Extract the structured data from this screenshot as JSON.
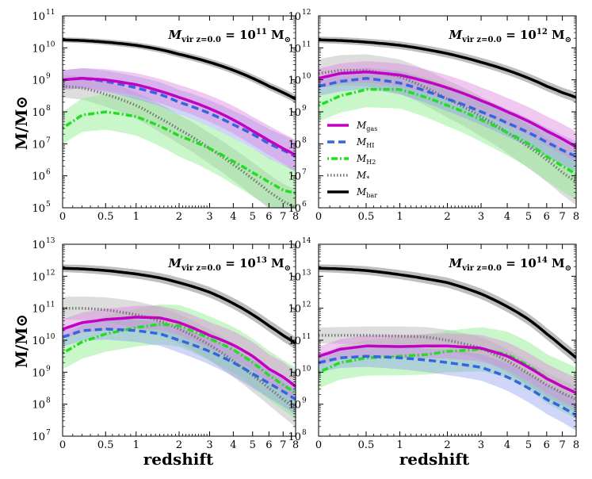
{
  "chart_data": [
    {
      "type": "line",
      "title": "M_vir z=0.0 = 10^11 M_sun",
      "title_parts": {
        "sym": "M",
        "sub": "vir z=0.0",
        "mid": " = 10",
        "exp": "11",
        "unit": " M",
        "unit_sub": "⊙"
      },
      "xlabel": "",
      "ylabel": "M/M⊙",
      "yexp_range": [
        5,
        11
      ],
      "x": [
        0,
        0.2,
        0.5,
        1,
        1.5,
        2,
        3,
        4,
        5,
        6,
        7,
        8
      ],
      "series": [
        {
          "name": "M_gas",
          "log10": [
            9.0,
            9.05,
            9.0,
            8.85,
            8.65,
            8.45,
            8.1,
            7.75,
            7.4,
            7.1,
            6.85,
            6.65
          ],
          "band": 0.3
        },
        {
          "name": "M_HI",
          "log10": [
            9.0,
            9.05,
            8.95,
            8.75,
            8.55,
            8.3,
            7.95,
            7.6,
            7.3,
            7.0,
            6.8,
            6.6
          ],
          "band": 0.3
        },
        {
          "name": "M_H2",
          "log10": [
            7.5,
            7.9,
            8.0,
            7.85,
            7.55,
            7.25,
            6.85,
            6.45,
            6.1,
            5.8,
            5.55,
            5.45
          ],
          "band": 0.5
        },
        {
          "name": "M_*",
          "log10": [
            8.8,
            8.75,
            8.55,
            8.2,
            7.8,
            7.45,
            6.85,
            6.35,
            5.9,
            5.5,
            5.2,
            5.0
          ],
          "band": 0.35
        },
        {
          "name": "M_bar",
          "log10": [
            10.25,
            10.23,
            10.18,
            10.08,
            9.95,
            9.8,
            9.55,
            9.3,
            9.05,
            8.8,
            8.6,
            8.4
          ],
          "band": 0.08
        }
      ]
    },
    {
      "type": "line",
      "title": "M_vir z=0.0 = 10^12 M_sun",
      "title_parts": {
        "sym": "M",
        "sub": "vir z=0.0",
        "mid": " = 10",
        "exp": "12",
        "unit": " M",
        "unit_sub": "⊙"
      },
      "xlabel": "",
      "ylabel": "",
      "yexp_range": [
        6,
        12
      ],
      "x": [
        0,
        0.2,
        0.5,
        1,
        1.5,
        2,
        3,
        4,
        5,
        6,
        7,
        8
      ],
      "series": [
        {
          "name": "M_gas",
          "log10": [
            10.05,
            10.2,
            10.25,
            10.15,
            9.95,
            9.75,
            9.35,
            9.0,
            8.7,
            8.4,
            8.15,
            7.9
          ],
          "band": 0.3
        },
        {
          "name": "M_HI",
          "log10": [
            9.8,
            9.95,
            10.05,
            9.9,
            9.65,
            9.4,
            9.0,
            8.65,
            8.35,
            8.05,
            7.8,
            7.6
          ],
          "band": 0.3
        },
        {
          "name": "M_H2",
          "log10": [
            9.2,
            9.5,
            9.7,
            9.7,
            9.45,
            9.2,
            8.75,
            8.35,
            8.0,
            7.6,
            7.3,
            7.05
          ],
          "band": 0.5
        },
        {
          "name": "M_*",
          "log10": [
            10.2,
            10.3,
            10.3,
            10.1,
            9.75,
            9.4,
            8.85,
            8.35,
            7.9,
            7.5,
            7.1,
            6.8
          ],
          "band": 0.45
        },
        {
          "name": "M_bar",
          "log10": [
            11.25,
            11.23,
            11.18,
            11.08,
            10.95,
            10.82,
            10.55,
            10.3,
            10.05,
            9.8,
            9.6,
            9.45
          ],
          "band": 0.1
        }
      ]
    },
    {
      "type": "line",
      "title": "M_vir z=0.0 = 10^13 M_sun",
      "title_parts": {
        "sym": "M",
        "sub": "vir z=0.0",
        "mid": " = 10",
        "exp": "13",
        "unit": " M",
        "unit_sub": "⊙"
      },
      "xlabel": "redshift",
      "ylabel": "M/M⊙",
      "yexp_range": [
        7,
        13
      ],
      "x": [
        0,
        0.2,
        0.5,
        1,
        1.5,
        2,
        3,
        4,
        5,
        6,
        7,
        8
      ],
      "series": [
        {
          "name": "M_gas",
          "log10": [
            10.35,
            10.55,
            10.65,
            10.72,
            10.7,
            10.55,
            10.15,
            9.85,
            9.5,
            9.1,
            8.85,
            8.55
          ],
          "band": 0.3
        },
        {
          "name": "M_HI",
          "log10": [
            10.1,
            10.3,
            10.35,
            10.3,
            10.2,
            10.0,
            9.65,
            9.3,
            8.95,
            8.65,
            8.4,
            8.15
          ],
          "band": 0.3
        },
        {
          "name": "M_H2",
          "log10": [
            9.6,
            9.95,
            10.2,
            10.4,
            10.5,
            10.45,
            10.05,
            9.7,
            9.3,
            8.9,
            8.6,
            8.35
          ],
          "band": 0.5
        },
        {
          "name": "M_*",
          "log10": [
            11.0,
            11.0,
            10.95,
            10.8,
            10.6,
            10.35,
            9.85,
            9.35,
            8.9,
            8.5,
            8.15,
            7.85
          ],
          "band": 0.35
        },
        {
          "name": "M_bar",
          "log10": [
            12.25,
            12.23,
            12.18,
            12.07,
            11.95,
            11.8,
            11.5,
            11.15,
            10.8,
            10.45,
            10.15,
            9.9
          ],
          "band": 0.12
        }
      ]
    },
    {
      "type": "line",
      "title": "M_vir z=0.0 = 10^14 M_sun",
      "title_parts": {
        "sym": "M",
        "sub": "vir z=0.0",
        "mid": " = 10",
        "exp": "14",
        "unit": " M",
        "unit_sub": "⊙"
      },
      "xlabel": "redshift",
      "ylabel": "",
      "yexp_range": [
        8,
        14
      ],
      "x": [
        0,
        0.2,
        0.5,
        1,
        1.5,
        2,
        3,
        4,
        5,
        6,
        7,
        8
      ],
      "series": [
        {
          "name": "M_gas",
          "log10": [
            10.5,
            10.72,
            10.82,
            10.8,
            10.82,
            10.82,
            10.75,
            10.5,
            10.15,
            9.8,
            9.55,
            9.35
          ],
          "band": 0.3
        },
        {
          "name": "M_HI",
          "log10": [
            10.3,
            10.45,
            10.5,
            10.45,
            10.38,
            10.3,
            10.15,
            9.85,
            9.5,
            9.15,
            8.9,
            8.65
          ],
          "band": 0.3
        },
        {
          "name": "M_H2",
          "log10": [
            10.0,
            10.3,
            10.45,
            10.5,
            10.55,
            10.65,
            10.72,
            10.55,
            10.2,
            9.8,
            9.55,
            9.35
          ],
          "band": 0.5
        },
        {
          "name": "M_*",
          "log10": [
            11.15,
            11.15,
            11.15,
            11.13,
            11.1,
            11.0,
            10.75,
            10.35,
            9.95,
            9.6,
            9.35,
            9.15
          ],
          "band": 0.25
        },
        {
          "name": "M_bar",
          "log10": [
            13.25,
            13.23,
            13.18,
            13.05,
            12.92,
            12.8,
            12.45,
            12.05,
            11.65,
            11.2,
            10.8,
            10.45
          ],
          "band": 0.12
        }
      ]
    }
  ],
  "x_ticks": [
    "0",
    "0.5",
    "1",
    "2",
    "3",
    "4",
    "5",
    "6",
    "7",
    "8"
  ],
  "tick_base": "10",
  "axis_labels": {
    "ylabel": "M/M⊙",
    "xlabel": "redshift"
  },
  "legend": {
    "entries": [
      {
        "sym": "M",
        "sub": "gas"
      },
      {
        "sym": "M",
        "sub": "HI"
      },
      {
        "sym": "M",
        "sub": "H2"
      },
      {
        "sym": "M",
        "sub": "*"
      },
      {
        "sym": "M",
        "sub": "bar"
      }
    ]
  },
  "colors": {
    "M_gas": "#c400c4",
    "M_HI": "#3366dd",
    "M_H2": "#22dd22",
    "M_*": "#777777",
    "M_bar": "#000000",
    "band_gas": "#dd88dd",
    "band_HI": "#8899ee",
    "band_H2": "#88ee88",
    "band_star": "#bbbbbb",
    "band_bar": "#888888"
  }
}
